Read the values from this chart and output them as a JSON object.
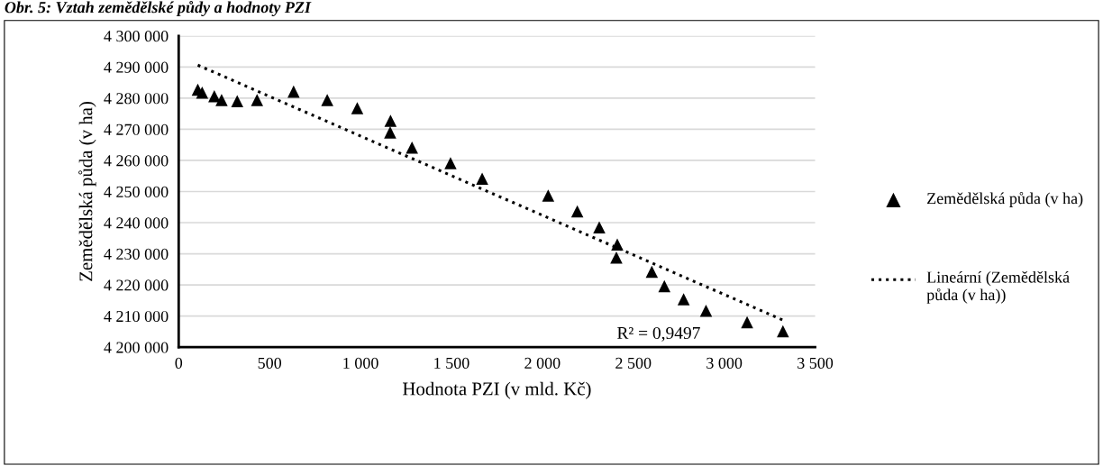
{
  "chart_data": {
    "type": "scatter",
    "title": "Obr. 5: Vztah zemědělské půdy a hodnoty PZI",
    "xlabel": "Hodnota PZI (v mld. Kč)",
    "ylabel": "Zemědělská půda (v ha)",
    "series": [
      {
        "name": "Zemědělská půda (v ha)",
        "color": "#000000",
        "marker": "triangle",
        "x": [
          105,
          129,
          196,
          236,
          322,
          431,
          632,
          817,
          982,
          1165,
          1163,
          1283,
          1495,
          1669,
          2032,
          2192,
          2313,
          2412,
          2407,
          2602,
          2671,
          2777,
          2900,
          3126,
          3323
        ],
        "values": [
          4282700,
          4281800,
          4280600,
          4279400,
          4279000,
          4279400,
          4282100,
          4279400,
          4276800,
          4272700,
          4269000,
          4264100,
          4259100,
          4254100,
          4248700,
          4243600,
          4238500,
          4233000,
          4228800,
          4224200,
          4219600,
          4215400,
          4211700,
          4208000,
          4205100
        ]
      },
      {
        "name": "Lineární (Zemědělská půda (v ha))",
        "type": "line",
        "color": "#000000",
        "marker": "none",
        "line_style": "dotted",
        "x": [
          105,
          3323
        ],
        "values": [
          4290600,
          4208700
        ]
      }
    ],
    "annotations": [
      "R² = 0,9497"
    ],
    "xlim": [
      0,
      3500
    ],
    "xticks": [
      0,
      500,
      {
        "value": 1000,
        "label": "1 000"
      },
      {
        "value": 1500,
        "label": "1 500"
      },
      {
        "value": 2000,
        "label": "2 000"
      },
      {
        "value": 2500,
        "label": "2 500"
      },
      {
        "value": 3000,
        "label": "3 000"
      },
      {
        "value": 3500,
        "label": "3 500"
      }
    ],
    "ylim": [
      4200000,
      4300000
    ],
    "yticks": [
      {
        "value": 4200000,
        "label": "4 200 000"
      },
      {
        "value": 4210000,
        "label": "4 210 000"
      },
      {
        "value": 4220000,
        "label": "4 220 000"
      },
      {
        "value": 4230000,
        "label": "4 230 000"
      },
      {
        "value": 4240000,
        "label": "4 240 000"
      },
      {
        "value": 4250000,
        "label": "4 250 000"
      },
      {
        "value": 4260000,
        "label": "4 260 000"
      },
      {
        "value": 4270000,
        "label": "4 270 000"
      },
      {
        "value": 4280000,
        "label": "4 280 000"
      },
      {
        "value": 4290000,
        "label": "4 290 000"
      },
      {
        "value": 4300000,
        "label": "4 300 000"
      }
    ],
    "grid": "y",
    "legend": "right"
  }
}
